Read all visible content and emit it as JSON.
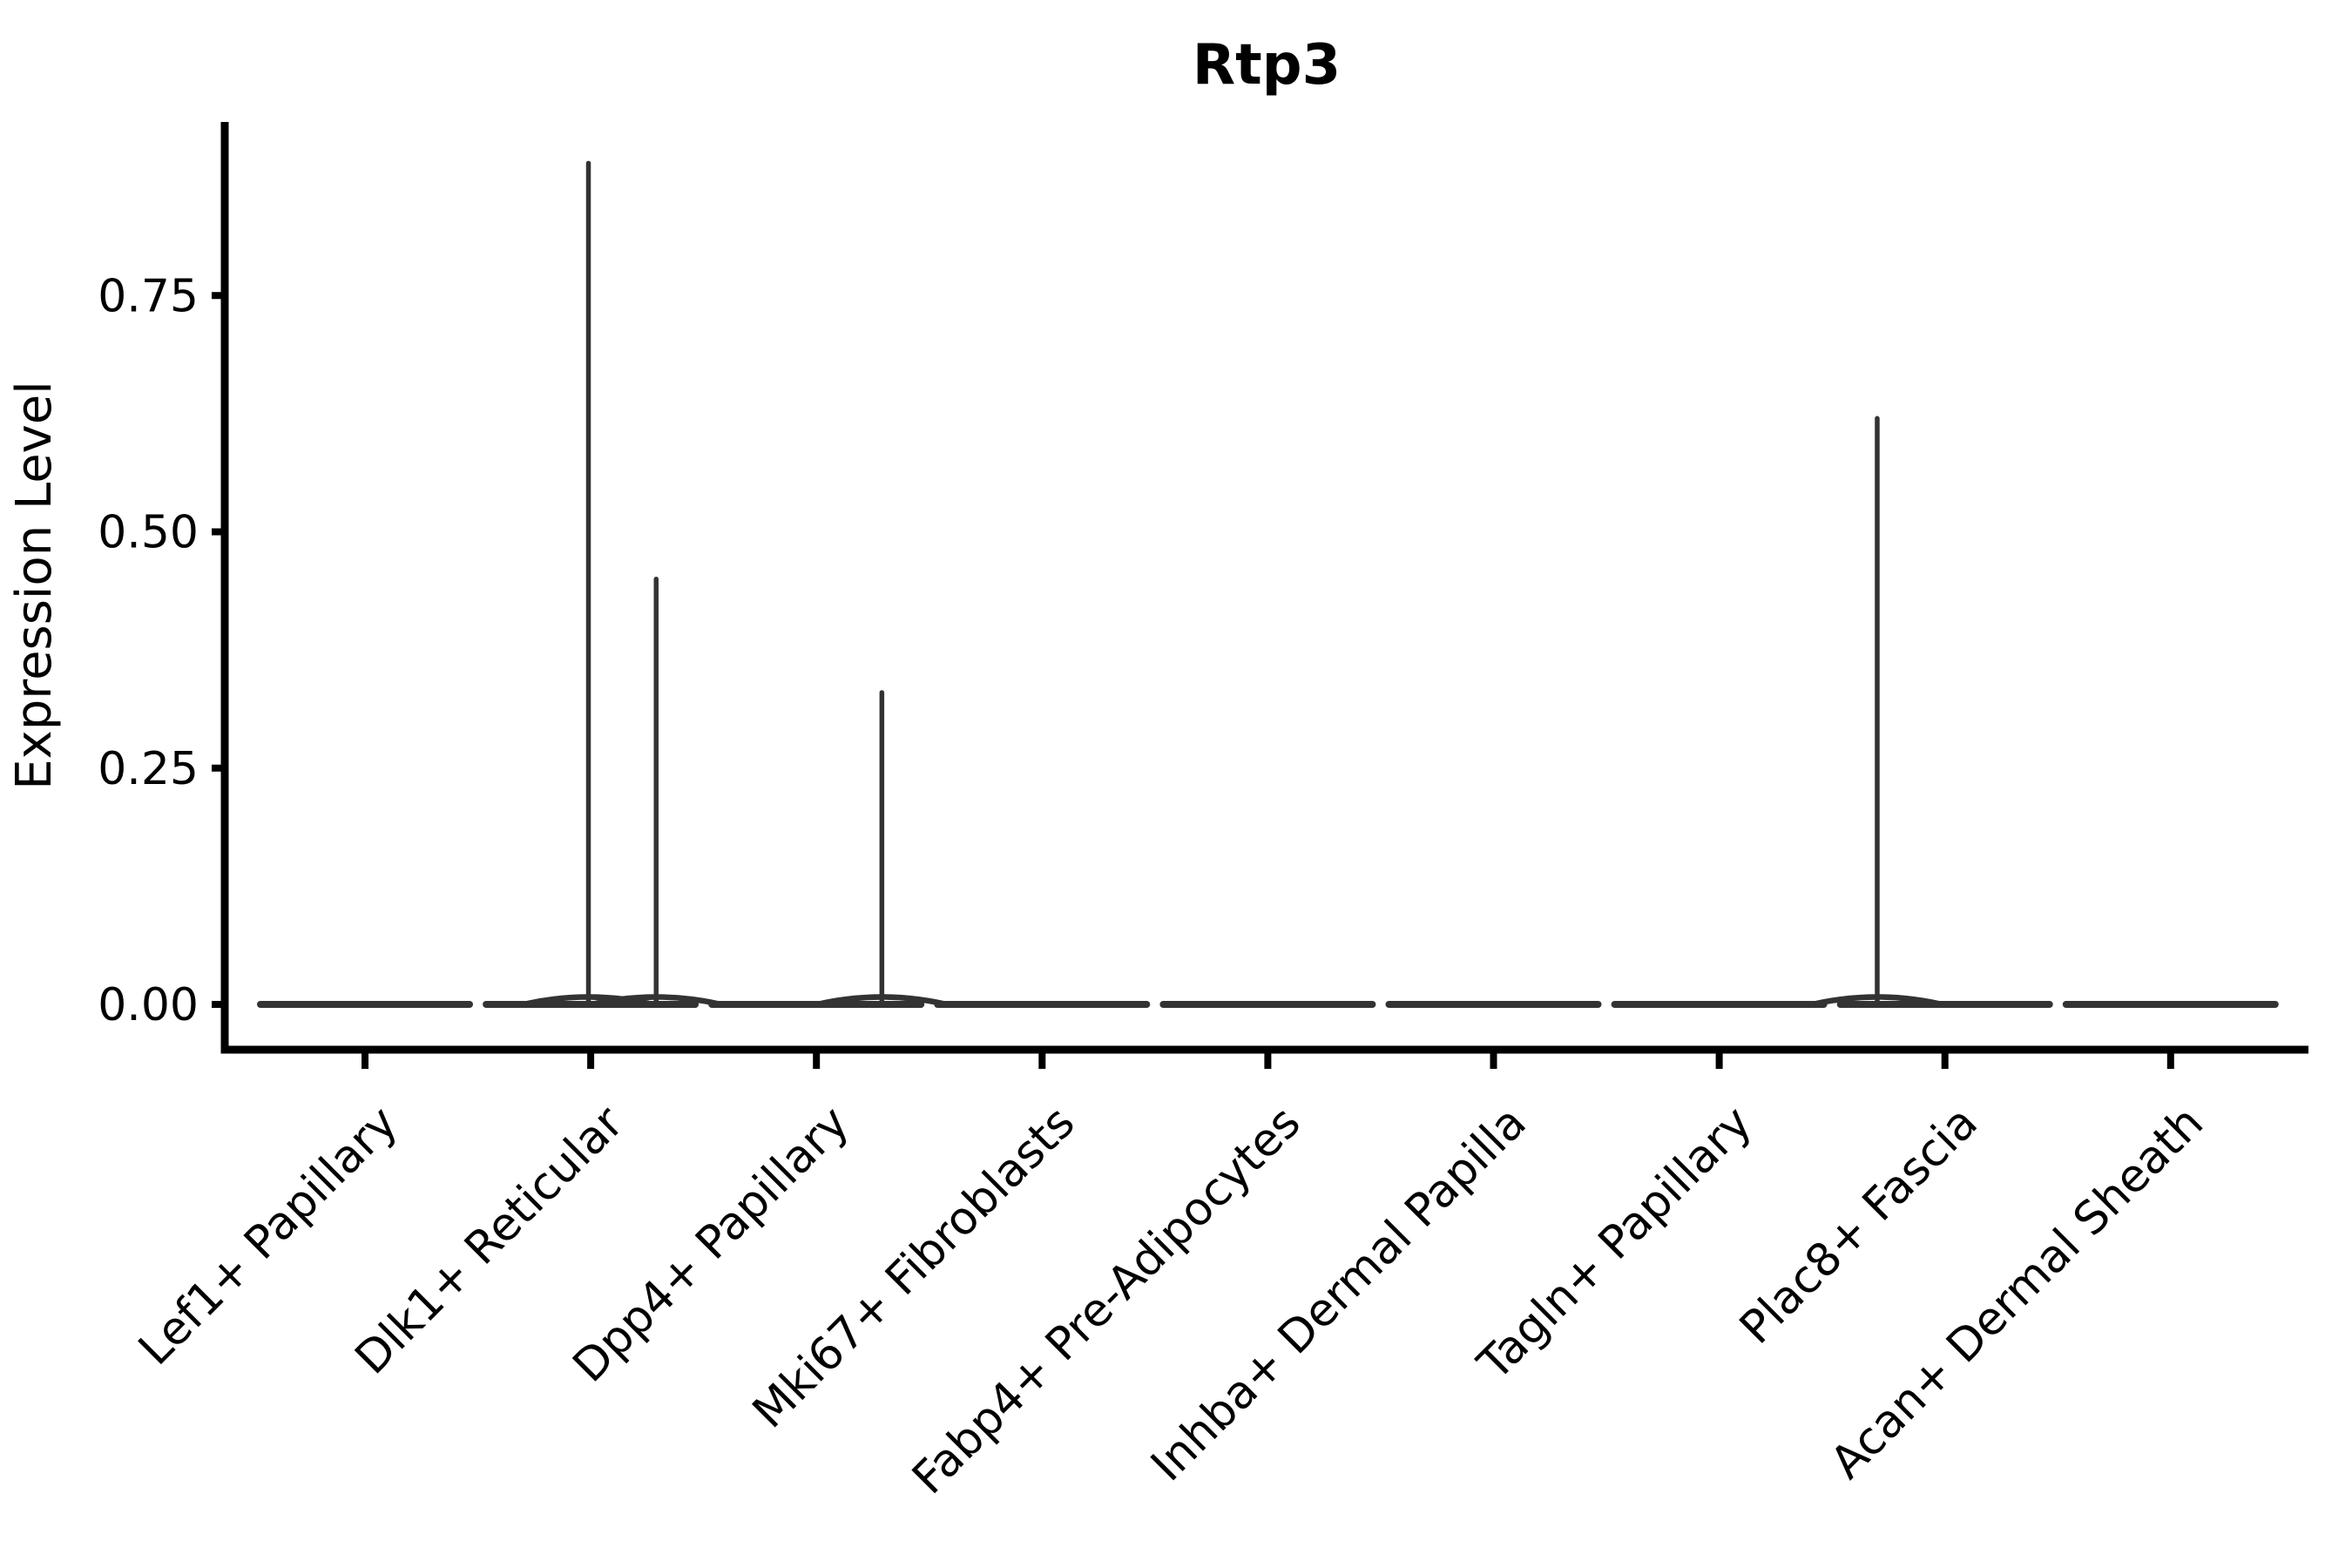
{
  "chart_data": {
    "type": "violin",
    "title": "Rtp3",
    "xlabel": "",
    "ylabel": "Expression Level",
    "ylim": [
      0,
      0.93
    ],
    "grid": false,
    "legend": "none",
    "ytick_values": [
      0.0,
      0.25,
      0.5,
      0.75
    ],
    "ytick_labels": [
      "0.00",
      "0.25",
      "0.50",
      "0.75"
    ],
    "categories": [
      "Lef1+ Papillary",
      "Dlk1+ Reticular",
      "Dpp4+ Papillary",
      "Mki67+ Fibroblasts",
      "Fabp4+ Pre-Adipocytes",
      "Inhba+ Dermal Papilla",
      "Tagln+ Papillary",
      "Plac8+ Fascia",
      "Acan+ Dermal Sheath"
    ],
    "violins": [
      {
        "category": "Lef1+ Papillary",
        "baseline_value": 0.0,
        "spikes": []
      },
      {
        "category": "Dlk1+ Reticular",
        "baseline_value": 0.0,
        "spikes": [
          {
            "value": 0.89,
            "dx": -0.01
          },
          {
            "value": 0.45,
            "dx": 0.29
          }
        ]
      },
      {
        "category": "Dpp4+ Papillary",
        "baseline_value": 0.0,
        "spikes": [
          {
            "value": 0.33,
            "dx": 0.29
          }
        ]
      },
      {
        "category": "Mki67+ Fibroblasts",
        "baseline_value": 0.0,
        "spikes": []
      },
      {
        "category": "Fabp4+ Pre-Adipocytes",
        "baseline_value": 0.0,
        "spikes": []
      },
      {
        "category": "Inhba+ Dermal Papilla",
        "baseline_value": 0.0,
        "spikes": []
      },
      {
        "category": "Tagln+ Papillary",
        "baseline_value": 0.0,
        "spikes": []
      },
      {
        "category": "Plac8+ Fascia",
        "baseline_value": 0.0,
        "spikes": [
          {
            "value": 0.62,
            "dx": -0.3
          }
        ]
      },
      {
        "category": "Acan+ Dermal Sheath",
        "baseline_value": 0.0,
        "spikes": []
      }
    ],
    "colors": {
      "axis": "#000000",
      "violin_stroke": "#333333",
      "text": "#000000",
      "background": "#ffffff"
    }
  }
}
